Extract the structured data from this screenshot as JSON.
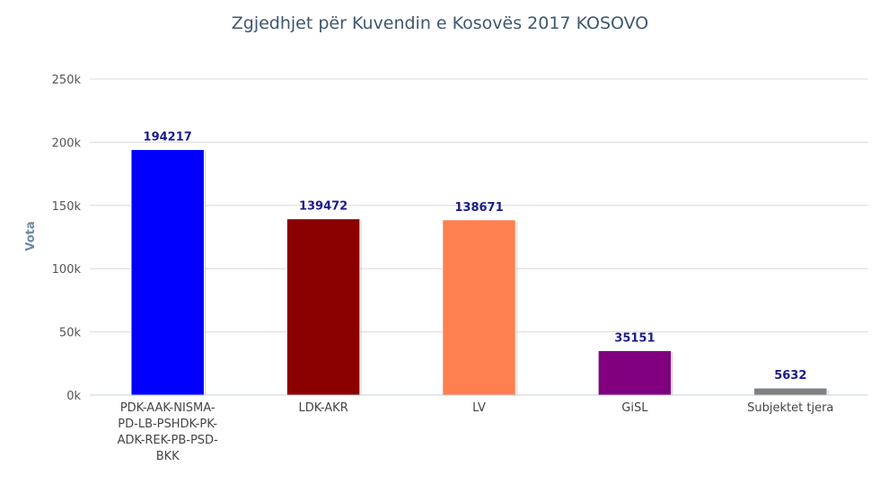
{
  "chart_data": {
    "type": "bar",
    "title": "Zgjedhjet për Kuvendin e Kosovës 2017 KOSOVO",
    "ylabel": "Vota",
    "xlabel": "",
    "ylim": [
      0,
      250000
    ],
    "ytick_values": [
      0,
      50000,
      100000,
      150000,
      200000,
      250000
    ],
    "ytick_labels": [
      "0k",
      "50k",
      "100k",
      "150k",
      "200k",
      "250k"
    ],
    "grid": true,
    "legend": "none",
    "categories": [
      [
        "PDK-AAK-NISMA-",
        "PD-LB-PSHDK-PK-",
        "ADK-REK-PB-PSD-",
        "BKK"
      ],
      [
        "LDK-AKR"
      ],
      [
        "LV"
      ],
      [
        "GiSL"
      ],
      [
        "Subjektet tjera"
      ]
    ],
    "values": [
      194217,
      139472,
      138671,
      35151,
      5632
    ],
    "colors": [
      "#0000ff",
      "#8b0000",
      "#ff7f50",
      "#800080",
      "#808080"
    ]
  }
}
